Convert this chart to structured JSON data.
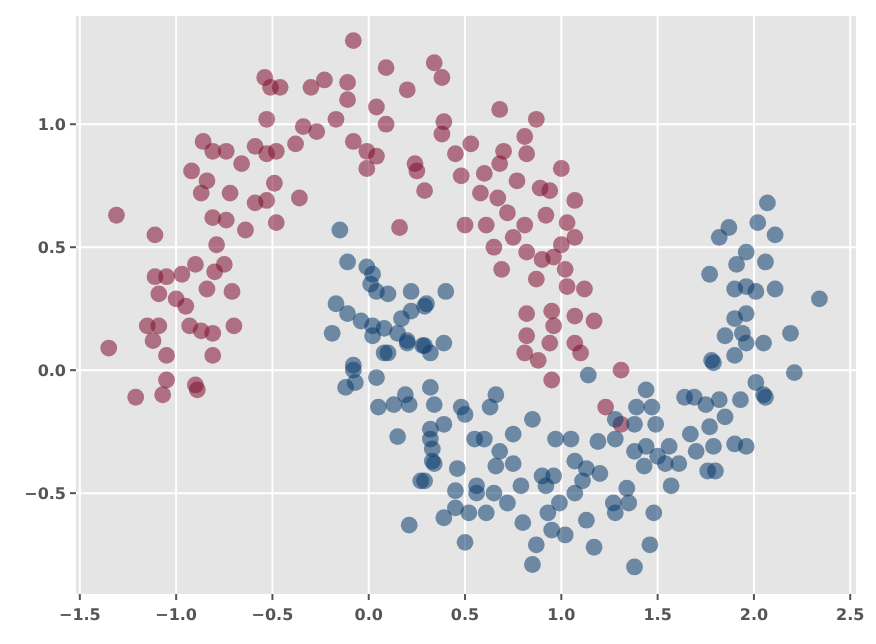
{
  "chart_data": {
    "type": "scatter",
    "xlim": [
      -1.52,
      2.53
    ],
    "ylim": [
      -0.91,
      1.44
    ],
    "xticks": [
      -1.5,
      {
        "value": -1,
        "label": "−1.0"
      },
      -0.5,
      {
        "value": 0,
        "label": "0.0"
      },
      0.5,
      {
        "value": 1,
        "label": "1.0"
      },
      1.5,
      {
        "value": 2,
        "label": "2.0"
      },
      2.5
    ],
    "yticks": [
      -0.5,
      {
        "value": 0,
        "label": "0.0"
      },
      0.5,
      {
        "value": 1,
        "label": "1.0"
      }
    ],
    "grid": true,
    "marker": "circle",
    "series": [
      {
        "color": "#7f0f2f",
        "x": [
          -1.31,
          -1.11,
          -1.35,
          -1.15,
          -1.09,
          -1.12,
          -1.05,
          -1.09,
          -1.11,
          -1.05,
          -1.0,
          -0.95,
          -0.97,
          -0.9,
          -0.84,
          -0.8,
          -0.75,
          -0.71,
          -0.93,
          -0.87,
          -0.81,
          -0.7,
          -0.81,
          -0.79,
          -0.81,
          -0.74,
          -0.72,
          -0.64,
          -0.59,
          -0.53,
          -0.48,
          -0.49,
          -0.36,
          -0.87,
          -0.84,
          -0.92,
          -0.86,
          -0.81,
          -0.74,
          -0.66,
          -0.59,
          -0.53,
          -0.48,
          -0.53,
          -0.54,
          -0.51,
          -0.46,
          -0.38,
          -0.34,
          -0.27,
          -0.3,
          -0.23,
          -0.08,
          -0.11,
          -0.11,
          -0.17,
          -0.08,
          -0.01,
          -0.01,
          0.04,
          0.09,
          0.09,
          0.04,
          0.16,
          0.2,
          0.25,
          0.29,
          0.34,
          -1.21,
          -1.05,
          -1.07,
          -0.9,
          -0.89,
          0.38,
          0.39,
          0.38,
          0.53,
          0.45,
          0.24,
          0.48,
          0.68,
          0.87,
          0.81,
          0.7,
          0.68,
          0.82,
          0.6,
          0.77,
          1.0,
          0.89,
          0.94,
          1.07,
          0.58,
          0.67,
          0.5,
          0.61,
          0.72,
          0.81,
          0.65,
          0.75,
          0.82,
          0.92,
          1.03,
          1.0,
          1.07,
          0.9,
          0.96,
          1.02,
          0.69,
          0.87,
          1.03,
          1.12,
          0.82,
          0.95,
          1.07,
          0.96,
          1.17,
          0.82,
          1.07,
          0.94,
          1.1,
          0.81,
          0.88,
          0.95,
          1.31,
          1.23,
          1.31
        ],
        "values": [
          0.63,
          0.55,
          0.09,
          0.18,
          0.18,
          0.12,
          0.06,
          0.31,
          0.38,
          0.38,
          0.29,
          0.26,
          0.39,
          0.43,
          0.33,
          0.4,
          0.43,
          0.32,
          0.18,
          0.16,
          0.15,
          0.18,
          0.06,
          0.51,
          0.62,
          0.61,
          0.72,
          0.57,
          0.68,
          0.69,
          0.6,
          0.76,
          0.7,
          0.72,
          0.77,
          0.81,
          0.93,
          0.89,
          0.89,
          0.84,
          0.91,
          0.88,
          0.89,
          1.02,
          1.19,
          1.15,
          1.15,
          0.92,
          0.99,
          0.97,
          1.15,
          1.18,
          1.34,
          1.17,
          1.1,
          1.02,
          0.93,
          0.89,
          0.82,
          0.87,
          1.23,
          1.0,
          1.07,
          0.58,
          1.14,
          0.81,
          0.73,
          1.25,
          -0.11,
          -0.04,
          -0.1,
          -0.06,
          -0.08,
          1.19,
          1.01,
          0.96,
          0.92,
          0.88,
          0.84,
          0.79,
          1.06,
          1.02,
          0.95,
          0.89,
          0.84,
          0.88,
          0.8,
          0.77,
          0.82,
          0.74,
          0.73,
          0.69,
          0.72,
          0.7,
          0.59,
          0.59,
          0.64,
          0.59,
          0.5,
          0.54,
          0.48,
          0.63,
          0.6,
          0.51,
          0.54,
          0.45,
          0.46,
          0.41,
          0.41,
          0.37,
          0.34,
          0.33,
          0.23,
          0.24,
          0.22,
          0.18,
          0.2,
          0.14,
          0.11,
          0.11,
          0.07,
          0.07,
          0.04,
          -0.04,
          0.0,
          -0.15,
          -0.22
        ]
      },
      {
        "color": "#0b3d6e",
        "x": [
          -0.15,
          -0.11,
          -0.01,
          0.02,
          0.01,
          0.04,
          0.1,
          0.22,
          -0.17,
          -0.11,
          -0.04,
          0.02,
          0.08,
          0.17,
          0.22,
          0.29,
          -0.19,
          0.02,
          0.15,
          0.2,
          0.28,
          0.08,
          0.1,
          -0.08,
          -0.08,
          -0.12,
          -0.07,
          0.04,
          0.05,
          0.19,
          0.13,
          0.21,
          0.15,
          0.27,
          0.21,
          0.32,
          0.33,
          0.34,
          0.32,
          0.34,
          0.3,
          0.4,
          0.39,
          0.32,
          1.14,
          1.44,
          0.66,
          1.77,
          1.82,
          1.87,
          2.07,
          2.02,
          2.11,
          1.96,
          1.91,
          2.06,
          1.9,
          1.96,
          2.01,
          2.11,
          2.34,
          1.9,
          1.96,
          1.94,
          1.85,
          1.96,
          2.05,
          2.19,
          1.78,
          1.9,
          2.21,
          2.01,
          2.05,
          1.79,
          2.06,
          1.96,
          1.9,
          1.8,
          1.76,
          1.79,
          1.7,
          1.77,
          1.67,
          1.85,
          1.93,
          1.75,
          1.69,
          1.64,
          1.82,
          1.54,
          1.61,
          1.57,
          1.56,
          1.5,
          1.44,
          1.38,
          1.43,
          1.49,
          1.47,
          1.39,
          1.38,
          1.28,
          1.19,
          1.2,
          1.13,
          1.05,
          0.97,
          1.07,
          1.11,
          0.96,
          0.9,
          0.92,
          1.07,
          0.99,
          0.93,
          1.13,
          0.95,
          1.02,
          0.87,
          0.85,
          1.17,
          1.27,
          1.28,
          1.35,
          1.38,
          1.46,
          1.48,
          1.34,
          1.28,
          0.85,
          0.75,
          0.68,
          0.66,
          0.75,
          0.79,
          0.65,
          0.72,
          0.61,
          0.8,
          0.56,
          0.56,
          0.5,
          0.52,
          0.45,
          0.39,
          0.45,
          0.46,
          0.39,
          0.32,
          0.33,
          0.29,
          0.55,
          0.6,
          0.63,
          0.48,
          0.5,
          0.2,
          0.29
        ],
        "values": [
          0.57,
          0.44,
          0.42,
          0.39,
          0.35,
          0.32,
          0.31,
          0.32,
          0.27,
          0.23,
          0.2,
          0.18,
          0.17,
          0.21,
          0.24,
          0.26,
          0.15,
          0.14,
          0.15,
          0.11,
          0.1,
          0.07,
          0.07,
          0.02,
          0.0,
          -0.07,
          -0.05,
          -0.03,
          -0.15,
          -0.1,
          -0.14,
          -0.14,
          -0.27,
          -0.45,
          -0.63,
          -0.24,
          -0.32,
          -0.38,
          -0.07,
          -0.14,
          0.27,
          0.32,
          0.11,
          0.07,
          -0.02,
          -0.08,
          -0.1,
          0.39,
          0.54,
          0.58,
          0.68,
          0.6,
          0.55,
          0.48,
          0.43,
          0.44,
          0.33,
          0.34,
          0.32,
          0.33,
          0.29,
          0.21,
          0.23,
          0.15,
          0.14,
          0.11,
          0.11,
          0.15,
          0.04,
          0.06,
          -0.01,
          -0.05,
          -0.1,
          0.03,
          -0.11,
          -0.31,
          -0.3,
          -0.41,
          -0.41,
          -0.31,
          -0.33,
          -0.23,
          -0.26,
          -0.19,
          -0.12,
          -0.14,
          -0.11,
          -0.11,
          -0.12,
          -0.38,
          -0.38,
          -0.47,
          -0.31,
          -0.35,
          -0.31,
          -0.33,
          -0.39,
          -0.22,
          -0.15,
          -0.15,
          -0.22,
          -0.28,
          -0.29,
          -0.42,
          -0.4,
          -0.28,
          -0.28,
          -0.37,
          -0.45,
          -0.43,
          -0.43,
          -0.47,
          -0.5,
          -0.54,
          -0.58,
          -0.61,
          -0.65,
          -0.67,
          -0.71,
          -0.79,
          -0.72,
          -0.54,
          -0.58,
          -0.54,
          -0.8,
          -0.71,
          -0.58,
          -0.48,
          -0.2,
          -0.2,
          -0.26,
          -0.33,
          -0.39,
          -0.38,
          -0.47,
          -0.5,
          -0.54,
          -0.58,
          -0.62,
          -0.47,
          -0.5,
          -0.7,
          -0.58,
          -0.56,
          -0.6,
          -0.49,
          -0.4,
          -0.22,
          -0.28,
          -0.37,
          -0.45,
          -0.28,
          -0.28,
          -0.15,
          -0.15,
          -0.18,
          0.12,
          0.1
        ]
      }
    ]
  }
}
